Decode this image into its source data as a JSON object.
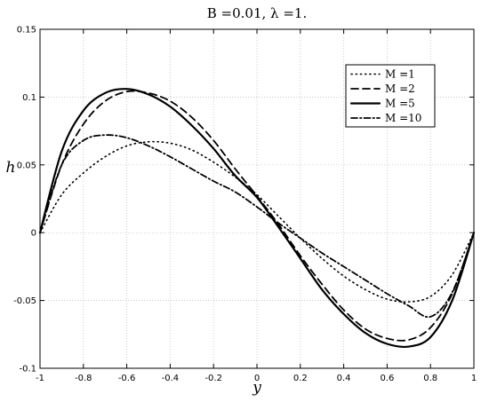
{
  "chart_data": {
    "type": "line",
    "title": "B =0.01, λ =1.",
    "xlabel": "y",
    "ylabel": "h",
    "xlim": [
      -1,
      1
    ],
    "ylim": [
      -0.1,
      0.15
    ],
    "xticks": [
      -1,
      -0.8,
      -0.6,
      -0.4,
      -0.2,
      0,
      0.2,
      0.4,
      0.6,
      0.8,
      1
    ],
    "xtick_labels": [
      "-1",
      "-0.8",
      "-0.6",
      "-0.4",
      "-0.2",
      "0",
      "0.2",
      "0.4",
      "0.6",
      "0.8",
      "1"
    ],
    "yticks": [
      -0.1,
      -0.05,
      0,
      0.05,
      0.1,
      0.15
    ],
    "ytick_labels": [
      "-0.1",
      "-0.05",
      "0",
      "0.05",
      "0.1",
      "0.15"
    ],
    "grid": true,
    "legend_position": "top-right",
    "series": [
      {
        "name": "M =1",
        "style": "dotted",
        "x": [
          -1,
          -0.9,
          -0.8,
          -0.7,
          -0.6,
          -0.5,
          -0.4,
          -0.3,
          -0.2,
          -0.1,
          0,
          0.1,
          0.2,
          0.3,
          0.4,
          0.5,
          0.6,
          0.7,
          0.8,
          0.9,
          1
        ],
        "y": [
          0,
          0.028,
          0.044,
          0.056,
          0.064,
          0.067,
          0.066,
          0.061,
          0.052,
          0.041,
          0.028,
          0.012,
          -0.004,
          -0.019,
          -0.032,
          -0.042,
          -0.049,
          -0.051,
          -0.047,
          -0.031,
          0
        ]
      },
      {
        "name": "M =2",
        "style": "dashed",
        "x": [
          -1,
          -0.9,
          -0.8,
          -0.7,
          -0.6,
          -0.5,
          -0.4,
          -0.3,
          -0.2,
          -0.1,
          0,
          0.1,
          0.2,
          0.3,
          0.4,
          0.5,
          0.6,
          0.7,
          0.8,
          0.9,
          1
        ],
        "y": [
          0,
          0.05,
          0.08,
          0.097,
          0.104,
          0.103,
          0.097,
          0.085,
          0.068,
          0.047,
          0.027,
          0.006,
          -0.017,
          -0.038,
          -0.057,
          -0.071,
          -0.078,
          -0.079,
          -0.07,
          -0.045,
          0
        ]
      },
      {
        "name": "M =5",
        "style": "solid",
        "x": [
          -1,
          -0.9,
          -0.8,
          -0.7,
          -0.6,
          -0.5,
          -0.4,
          -0.3,
          -0.2,
          -0.1,
          0,
          0.1,
          0.2,
          0.3,
          0.4,
          0.5,
          0.6,
          0.7,
          0.8,
          0.9,
          1
        ],
        "y": [
          0,
          0.06,
          0.09,
          0.103,
          0.106,
          0.102,
          0.093,
          0.079,
          0.062,
          0.042,
          0.026,
          0.004,
          -0.019,
          -0.042,
          -0.06,
          -0.074,
          -0.082,
          -0.084,
          -0.077,
          -0.05,
          0
        ]
      },
      {
        "name": "M =10",
        "style": "dashdot",
        "x": [
          -1,
          -0.9,
          -0.8,
          -0.7,
          -0.6,
          -0.5,
          -0.4,
          -0.3,
          -0.2,
          -0.1,
          0,
          0.1,
          0.2,
          0.3,
          0.4,
          0.5,
          0.6,
          0.7,
          0.8,
          0.9,
          1
        ],
        "y": [
          0,
          0.05,
          0.068,
          0.072,
          0.07,
          0.064,
          0.056,
          0.047,
          0.038,
          0.03,
          0.019,
          0.007,
          -0.004,
          -0.015,
          -0.025,
          -0.035,
          -0.045,
          -0.054,
          -0.062,
          -0.044,
          0
        ]
      }
    ]
  }
}
